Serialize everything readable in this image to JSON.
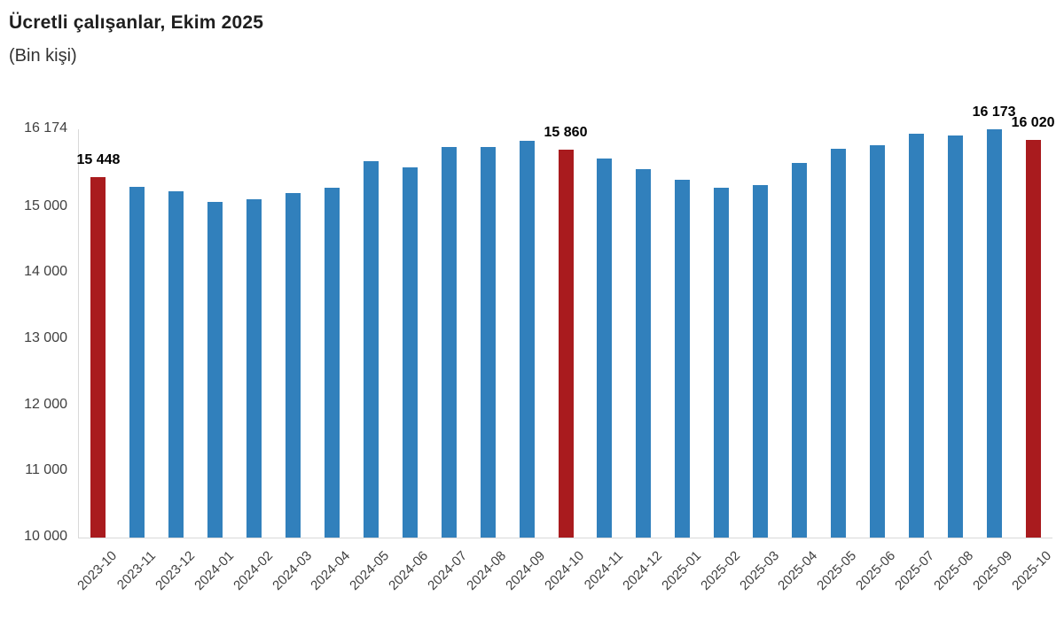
{
  "header": {
    "title": "Ücretli çalışanlar, Ekim 2025",
    "subtitle": "(Bin kişi)"
  },
  "colors": {
    "bar_default": "#3180BC",
    "bar_highlight": "#A91B1E",
    "axis_line": "#D9D9D9",
    "axis_text": "#404040",
    "annotation_text": "#000000"
  },
  "chart_data": {
    "type": "bar",
    "title": "Ücretli çalışanlar, Ekim 2025",
    "subtitle": "(Bin kişi)",
    "ylabel": "Bin kişi",
    "ylim": [
      10000,
      16174
    ],
    "grid": false,
    "legend": "none",
    "x_tick_rotation": -45,
    "y_ticks": [
      {
        "value": 16174,
        "label": "16 174"
      },
      {
        "value": 15000,
        "label": "15 000"
      },
      {
        "value": 14000,
        "label": "14 000"
      },
      {
        "value": 13000,
        "label": "13 000"
      },
      {
        "value": 12000,
        "label": "12 000"
      },
      {
        "value": 11000,
        "label": "11 000"
      },
      {
        "value": 10000,
        "label": "10 000"
      }
    ],
    "categories": [
      "2023-10",
      "2023-11",
      "2023-12",
      "2024-01",
      "2024-02",
      "2024-03",
      "2024-04",
      "2024-05",
      "2024-06",
      "2024-07",
      "2024-08",
      "2024-09",
      "2024-10",
      "2024-11",
      "2024-12",
      "2025-01",
      "2025-02",
      "2025-03",
      "2025-04",
      "2025-05",
      "2025-06",
      "2025-07",
      "2025-08",
      "2025-09",
      "2025-10"
    ],
    "points": [
      {
        "category": "2023-10",
        "value": 15448,
        "highlight": true,
        "label": "15 448"
      },
      {
        "category": "2023-11",
        "value": 15305,
        "highlight": false,
        "label": null
      },
      {
        "category": "2023-12",
        "value": 15240,
        "highlight": false,
        "label": null
      },
      {
        "category": "2024-01",
        "value": 15070,
        "highlight": false,
        "label": null
      },
      {
        "category": "2024-02",
        "value": 15115,
        "highlight": false,
        "label": null
      },
      {
        "category": "2024-03",
        "value": 15215,
        "highlight": false,
        "label": null
      },
      {
        "category": "2024-04",
        "value": 15295,
        "highlight": false,
        "label": null
      },
      {
        "category": "2024-05",
        "value": 15690,
        "highlight": false,
        "label": null
      },
      {
        "category": "2024-06",
        "value": 15605,
        "highlight": false,
        "label": null
      },
      {
        "category": "2024-07",
        "value": 15910,
        "highlight": false,
        "label": null
      },
      {
        "category": "2024-08",
        "value": 15900,
        "highlight": false,
        "label": null
      },
      {
        "category": "2024-09",
        "value": 15995,
        "highlight": false,
        "label": null
      },
      {
        "category": "2024-10",
        "value": 15860,
        "highlight": true,
        "label": "15 860"
      },
      {
        "category": "2024-11",
        "value": 15730,
        "highlight": false,
        "label": null
      },
      {
        "category": "2024-12",
        "value": 15570,
        "highlight": false,
        "label": null
      },
      {
        "category": "2025-01",
        "value": 15415,
        "highlight": false,
        "label": null
      },
      {
        "category": "2025-02",
        "value": 15285,
        "highlight": false,
        "label": null
      },
      {
        "category": "2025-03",
        "value": 15325,
        "highlight": false,
        "label": null
      },
      {
        "category": "2025-04",
        "value": 15660,
        "highlight": false,
        "label": null
      },
      {
        "category": "2025-05",
        "value": 15875,
        "highlight": false,
        "label": null
      },
      {
        "category": "2025-06",
        "value": 15935,
        "highlight": false,
        "label": null
      },
      {
        "category": "2025-07",
        "value": 16110,
        "highlight": false,
        "label": null
      },
      {
        "category": "2025-08",
        "value": 16085,
        "highlight": false,
        "label": null
      },
      {
        "category": "2025-09",
        "value": 16173,
        "highlight": false,
        "label": "16 173"
      },
      {
        "category": "2025-10",
        "value": 16020,
        "highlight": true,
        "label": "16 020"
      }
    ]
  }
}
